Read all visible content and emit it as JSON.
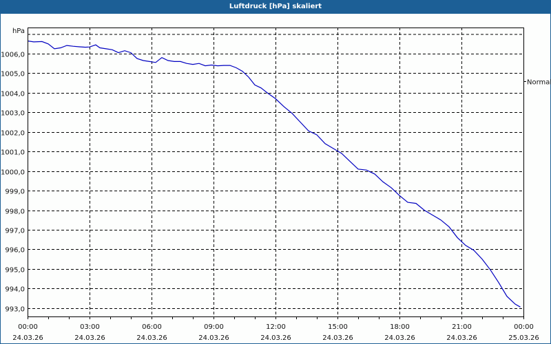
{
  "window": {
    "title": "Luftdruck [hPa] skaliert"
  },
  "chart_data": {
    "type": "line",
    "title": "Luftdruck [hPa] skaliert",
    "ylabel": "hPa",
    "xlabel": "",
    "ylim": [
      992.5,
      1007.3
    ],
    "grid": true,
    "y_ticks": [
      "1006,0",
      "1005,0",
      "1004,0",
      "1003,0",
      "1002,0",
      "1001,0",
      "1000,0",
      "999,0",
      "998,0",
      "997,0",
      "996,0",
      "995,0",
      "994,0",
      "993,0"
    ],
    "y_tick_values": [
      1006,
      1005,
      1004,
      1003,
      1002,
      1001,
      1000,
      999,
      998,
      997,
      996,
      995,
      994,
      993
    ],
    "x_ticks": [
      {
        "time": "00:00",
        "date": "24.03.26",
        "hour": 0
      },
      {
        "time": "03:00",
        "date": "24.03.26",
        "hour": 3
      },
      {
        "time": "06:00",
        "date": "24.03.26",
        "hour": 6
      },
      {
        "time": "09:00",
        "date": "24.03.26",
        "hour": 9
      },
      {
        "time": "12:00",
        "date": "24.03.26",
        "hour": 12
      },
      {
        "time": "15:00",
        "date": "24.03.26",
        "hour": 15
      },
      {
        "time": "18:00",
        "date": "24.03.26",
        "hour": 18
      },
      {
        "time": "21:00",
        "date": "24.03.26",
        "hour": 21
      },
      {
        "time": "00:00",
        "date": "25.03.26",
        "hour": 24
      }
    ],
    "reference_line": {
      "label": "Normal",
      "value": 1004.6
    },
    "series": [
      {
        "name": "Luftdruck",
        "color": "#0000c0",
        "x_hours": [
          0,
          0.3,
          0.7,
          1.0,
          1.3,
          1.6,
          1.9,
          2.2,
          2.5,
          2.8,
          3.0,
          3.3,
          3.5,
          3.8,
          4.1,
          4.4,
          4.7,
          5.0,
          5.3,
          5.6,
          5.9,
          6.2,
          6.5,
          6.8,
          7.1,
          7.4,
          7.7,
          8.0,
          8.3,
          8.6,
          8.9,
          9.2,
          9.5,
          9.8,
          10.1,
          10.4,
          10.7,
          11.0,
          11.3,
          11.6,
          12.0,
          12.4,
          12.8,
          13.2,
          13.6,
          14.0,
          14.4,
          14.8,
          15.2,
          15.6,
          16.0,
          16.4,
          16.8,
          17.2,
          17.6,
          18.0,
          18.4,
          18.8,
          19.2,
          19.6,
          20.0,
          20.4,
          20.8,
          21.2,
          21.6,
          22.0,
          22.4,
          22.8,
          23.2,
          23.6,
          23.85
        ],
        "values": [
          1006.65,
          1006.6,
          1006.62,
          1006.5,
          1006.25,
          1006.3,
          1006.42,
          1006.38,
          1006.35,
          1006.33,
          1006.34,
          1006.45,
          1006.3,
          1006.25,
          1006.2,
          1006.05,
          1006.15,
          1006.05,
          1005.75,
          1005.65,
          1005.6,
          1005.55,
          1005.8,
          1005.65,
          1005.6,
          1005.6,
          1005.5,
          1005.45,
          1005.5,
          1005.38,
          1005.42,
          1005.38,
          1005.4,
          1005.4,
          1005.28,
          1005.1,
          1004.8,
          1004.4,
          1004.25,
          1004.0,
          1003.7,
          1003.3,
          1002.95,
          1002.5,
          1002.05,
          1001.85,
          1001.4,
          1001.15,
          1000.9,
          1000.5,
          1000.1,
          1000.05,
          999.85,
          999.45,
          999.15,
          998.75,
          998.4,
          998.35,
          998.0,
          997.75,
          997.5,
          997.15,
          996.6,
          996.2,
          995.95,
          995.5,
          994.95,
          994.3,
          993.6,
          993.2,
          993.05
        ]
      }
    ]
  }
}
